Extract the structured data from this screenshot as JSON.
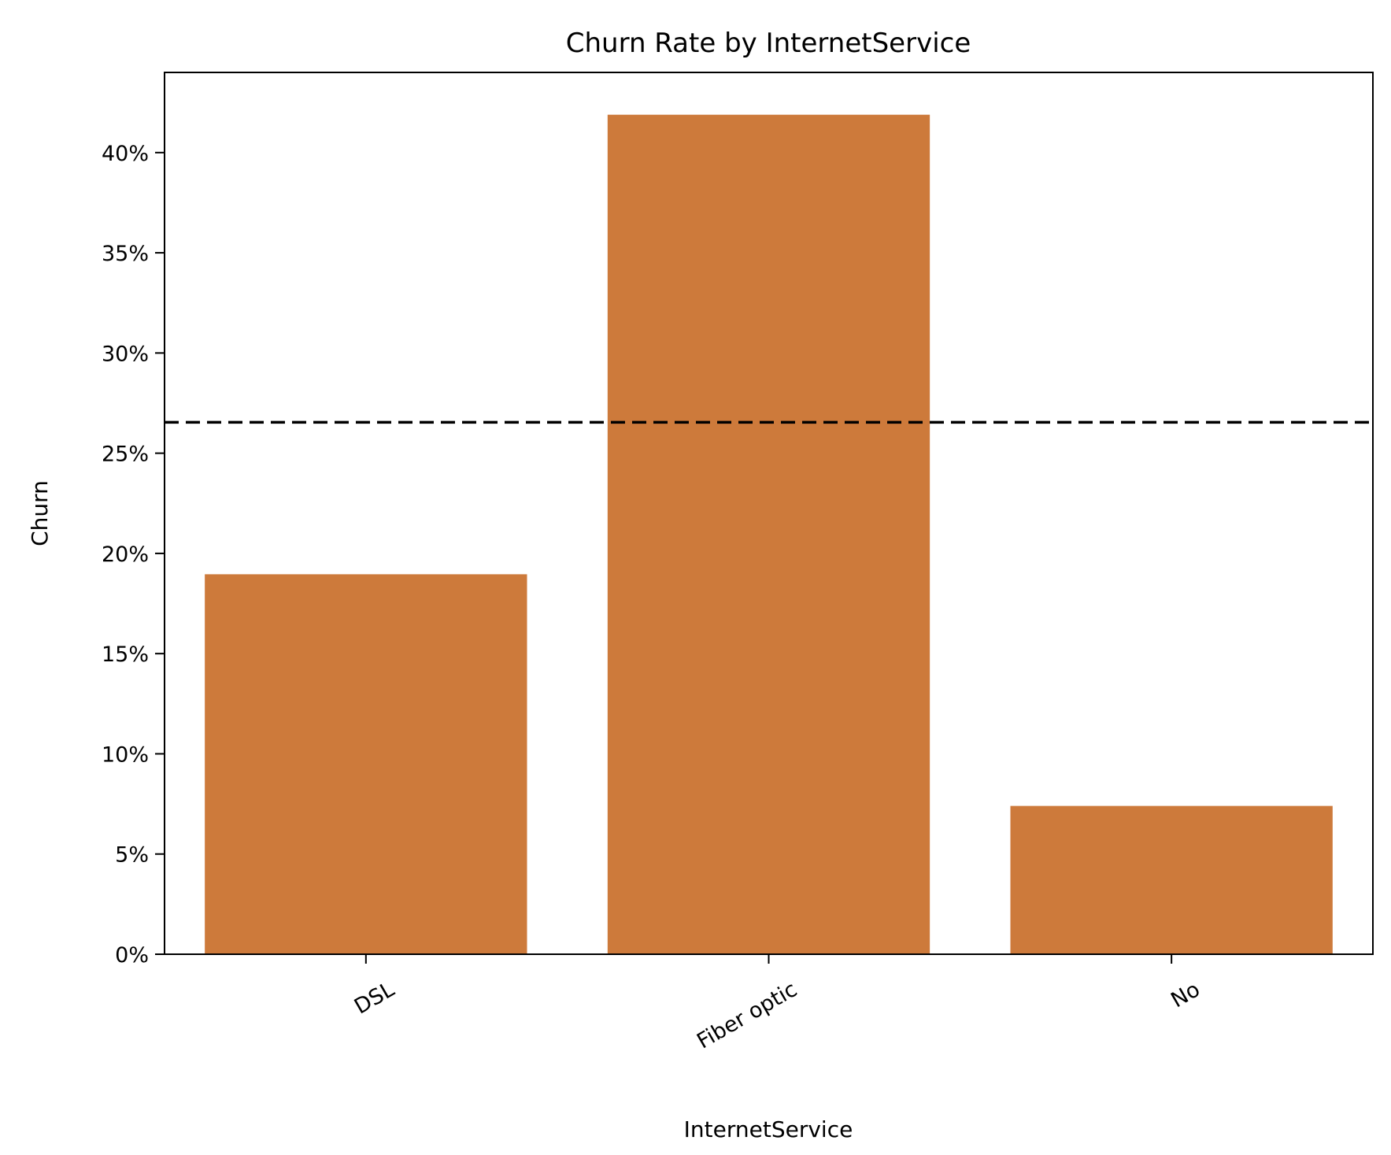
{
  "chart_data": {
    "type": "bar",
    "title": "Churn Rate by InternetService",
    "xlabel": "InternetService",
    "ylabel": "Churn",
    "categories": [
      "DSL",
      "Fiber optic",
      "No"
    ],
    "values": [
      18.96,
      41.89,
      7.4
    ],
    "value_unit": "%",
    "ylim": [
      0,
      44
    ],
    "yticks": [
      0,
      5,
      10,
      15,
      20,
      25,
      30,
      35,
      40
    ],
    "ytick_labels": [
      "0%",
      "5%",
      "10%",
      "15%",
      "20%",
      "25%",
      "30%",
      "35%",
      "40%"
    ],
    "reference_line": {
      "value": 26.54,
      "style": "dashed",
      "color": "#000000"
    },
    "bar_color": "#cd7a3b",
    "grid": false,
    "legend": "none"
  }
}
